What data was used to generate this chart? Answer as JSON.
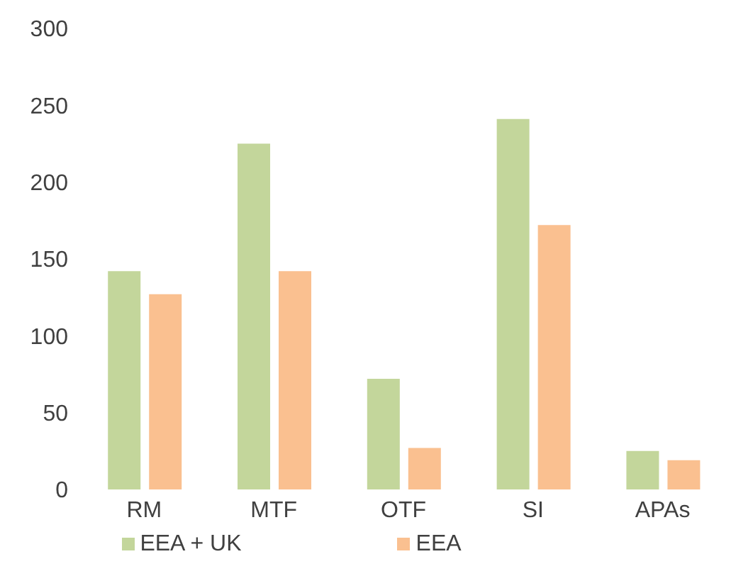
{
  "chart_data": {
    "type": "bar",
    "categories": [
      "RM",
      "MTF",
      "OTF",
      "SI",
      "APAs"
    ],
    "series": [
      {
        "name": "EEA + UK",
        "color": "#c3d69b",
        "values": [
          142,
          225,
          72,
          241,
          25
        ]
      },
      {
        "name": "EEA",
        "color": "#fac090",
        "values": [
          127,
          142,
          27,
          172,
          19
        ]
      }
    ],
    "ylim": [
      0,
      300
    ],
    "yticks": [
      0,
      50,
      100,
      150,
      200,
      250,
      300
    ],
    "grid": false,
    "legend": "bottom"
  }
}
